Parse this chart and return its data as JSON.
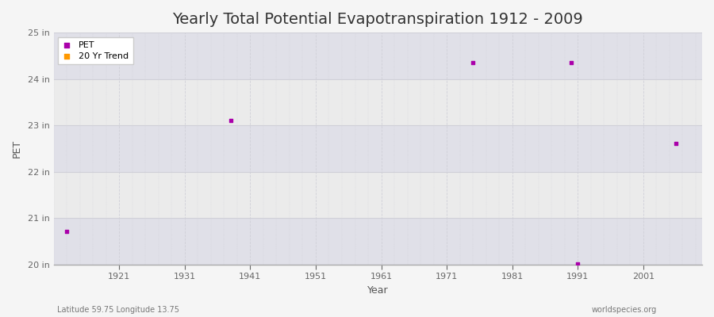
{
  "title": "Yearly Total Potential Evapotranspiration 1912 - 2009",
  "xlabel": "Year",
  "ylabel": "PET",
  "xlim": [
    1911,
    2010
  ],
  "ylim": [
    20,
    25
  ],
  "xticks": [
    1921,
    1931,
    1941,
    1951,
    1961,
    1971,
    1981,
    1991,
    2001
  ],
  "ytick_labels": [
    "20 in",
    "21 in",
    "22 in",
    "23 in",
    "24 in",
    "25 in"
  ],
  "ytick_values": [
    20,
    21,
    22,
    23,
    24,
    25
  ],
  "background_color": "#f5f5f5",
  "plot_bg_color": "#ebebeb",
  "band_colors": [
    "#e0e0e8",
    "#ebebeb"
  ],
  "grid_color": "#d0d0d8",
  "pet_color": "#aa00aa",
  "trend_color": "#ff9900",
  "pet_marker": "s",
  "pet_marker_size": 3,
  "data_points": [
    {
      "year": 1913,
      "pet": 20.72
    },
    {
      "year": 1938,
      "pet": 23.1
    },
    {
      "year": 1975,
      "pet": 24.35
    },
    {
      "year": 1990,
      "pet": 24.35
    },
    {
      "year": 1991,
      "pet": 20.02
    },
    {
      "year": 2006,
      "pet": 22.62
    }
  ],
  "subtitle_left": "Latitude 59.75 Longitude 13.75",
  "subtitle_right": "worldspecies.org",
  "title_fontsize": 14,
  "axis_label_fontsize": 9,
  "tick_fontsize": 8,
  "legend_entries": [
    "PET",
    "20 Yr Trend"
  ]
}
